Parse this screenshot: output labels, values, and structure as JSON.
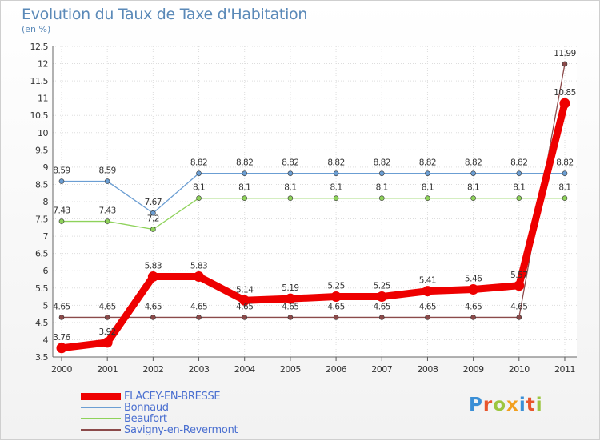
{
  "title": "Evolution du Taux de Taxe d'Habitation",
  "subtitle": "(en %)",
  "logo": {
    "text": "Proxiti",
    "colors": [
      "#3b8fd6",
      "#e8552c",
      "#9cc63f",
      "#f2a01e",
      "#3b8fd6",
      "#e8552c",
      "#9cc63f"
    ]
  },
  "chart_data": {
    "type": "line",
    "x": [
      "2000",
      "2001",
      "2002",
      "2003",
      "2004",
      "2005",
      "2006",
      "2007",
      "2008",
      "2009",
      "2010",
      "2011"
    ],
    "ylim": [
      3.5,
      12.5
    ],
    "yticks": [
      "3.5",
      "4",
      "4.5",
      "5",
      "5.5",
      "6",
      "6.5",
      "7",
      "7.5",
      "8",
      "8.5",
      "9",
      "9.5",
      "10",
      "10.5",
      "11",
      "11.5",
      "12",
      "12.5"
    ],
    "grid": true,
    "legend_position": "bottom-left",
    "series": [
      {
        "name": "FLACEY-EN-BRESSE",
        "color": "#ee0000",
        "values": [
          3.76,
          3.92,
          5.83,
          5.83,
          5.14,
          5.19,
          5.25,
          5.25,
          5.41,
          5.46,
          5.57,
          10.85
        ],
        "labels": [
          "3.76",
          "3.92",
          "5.83",
          "5.83",
          "5.14",
          "5.19",
          "5.25",
          "5.25",
          "5.41",
          "5.46",
          "5.57",
          "10.85"
        ]
      },
      {
        "name": "Bonnaud",
        "color": "#6b9ed3",
        "values": [
          8.59,
          8.59,
          7.67,
          8.82,
          8.82,
          8.82,
          8.82,
          8.82,
          8.82,
          8.82,
          8.82,
          8.82
        ],
        "labels": [
          "8.59",
          "8.59",
          "7.67",
          "8.82",
          "8.82",
          "8.82",
          "8.82",
          "8.82",
          "8.82",
          "8.82",
          "8.82",
          "8.82"
        ]
      },
      {
        "name": "Beaufort",
        "color": "#8ed25a",
        "values": [
          7.43,
          7.43,
          7.2,
          8.1,
          8.1,
          8.1,
          8.1,
          8.1,
          8.1,
          8.1,
          8.1,
          8.1
        ],
        "labels": [
          "7.43",
          "7.43",
          "7.2",
          "8.1",
          "8.1",
          "8.1",
          "8.1",
          "8.1",
          "8.1",
          "8.1",
          "8.1",
          "8.1"
        ]
      },
      {
        "name": "Savigny-en-Revermont",
        "color": "#8b4a4a",
        "values": [
          4.65,
          4.65,
          4.65,
          4.65,
          4.65,
          4.65,
          4.65,
          4.65,
          4.65,
          4.65,
          4.65,
          11.99
        ],
        "labels": [
          "4.65",
          "4.65",
          "4.65",
          "4.65",
          "4.65",
          "4.65",
          "4.65",
          "4.65",
          "4.65",
          "4.65",
          "4.65",
          "11.99"
        ]
      }
    ]
  }
}
